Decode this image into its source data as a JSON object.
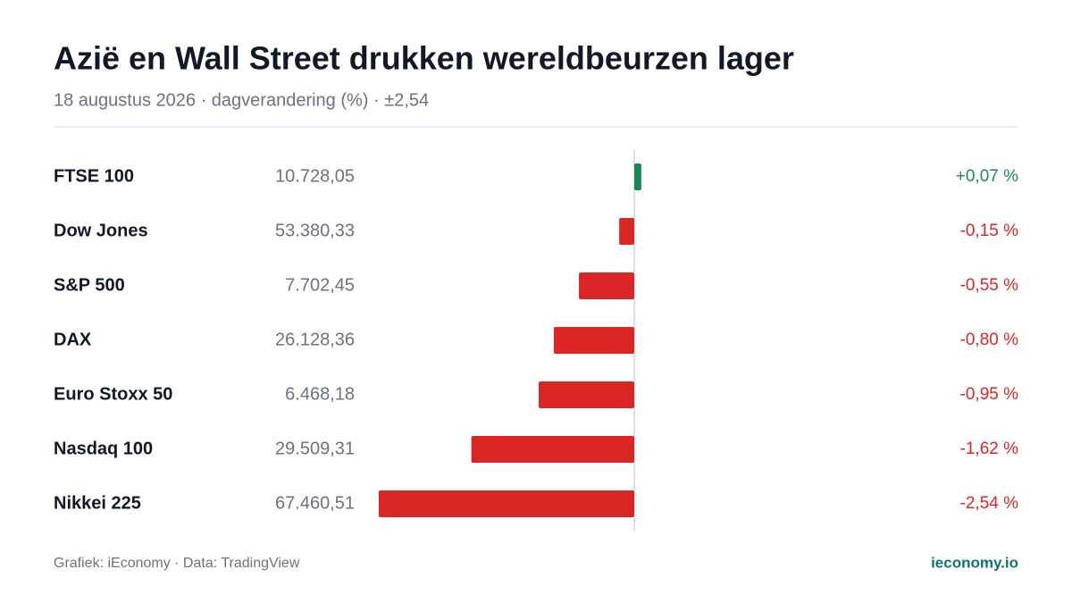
{
  "chart_data": {
    "type": "diverging-bar",
    "title": "Azië en Wall Street drukken wereldbeurzen lager",
    "subtitle": "18 augustus 2026 · dagverandering (%) · ±2,54",
    "categories": [
      "FTSE 100",
      "Dow Jones",
      "S&P 500",
      "DAX",
      "Euro Stoxx 50",
      "Nasdaq 100",
      "Nikkei 225"
    ],
    "levels": [
      "10.728,05",
      "53.380,33",
      "7.702,45",
      "26.128,36",
      "6.468,18",
      "29.509,31",
      "67.460,51"
    ],
    "values": [
      0.07,
      -0.15,
      -0.55,
      -0.8,
      -0.95,
      -1.62,
      -2.54
    ],
    "value_labels": [
      "+0,07 %",
      "-0,15 %",
      "-0,55 %",
      "-0,80 %",
      "-0,95 %",
      "-1,62 %",
      "-2,54 %"
    ],
    "xlim": [
      -2.54,
      2.54
    ],
    "positive_color": "#178a55",
    "negative_color": "#dc2626",
    "source": "Grafiek: iEconomy · Data: TradingView",
    "brand": "ieconomy.io"
  }
}
